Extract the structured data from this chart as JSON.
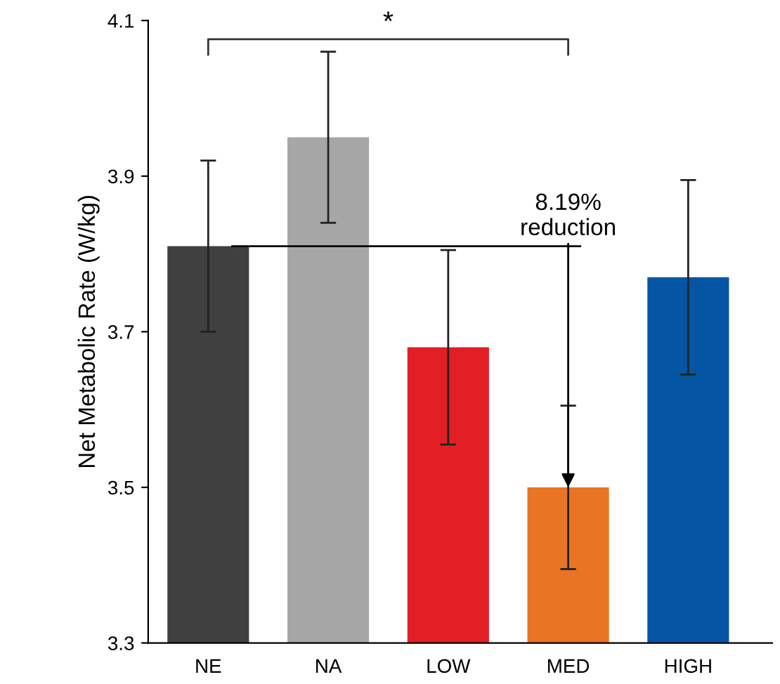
{
  "chart_data": {
    "type": "bar",
    "ylabel": "Net Metabolic Rate (W/kg)",
    "categories": [
      "NE",
      "NA",
      "LOW",
      "MED",
      "HIGH"
    ],
    "values": [
      3.81,
      3.95,
      3.68,
      3.5,
      3.77
    ],
    "errors": [
      0.11,
      0.11,
      0.125,
      0.105,
      0.125
    ],
    "colors": [
      "#404040",
      "#a6a6a6",
      "#e31f26",
      "#e87424",
      "#0455a4"
    ],
    "ylim": [
      3.3,
      4.1
    ],
    "yticks": [
      3.3,
      3.5,
      3.7,
      3.9,
      4.1
    ],
    "grid": false,
    "annotations": [
      "*",
      {
        "text": "8.19%\nreduction",
        "x": "MED",
        "y": 3.5
      }
    ]
  }
}
